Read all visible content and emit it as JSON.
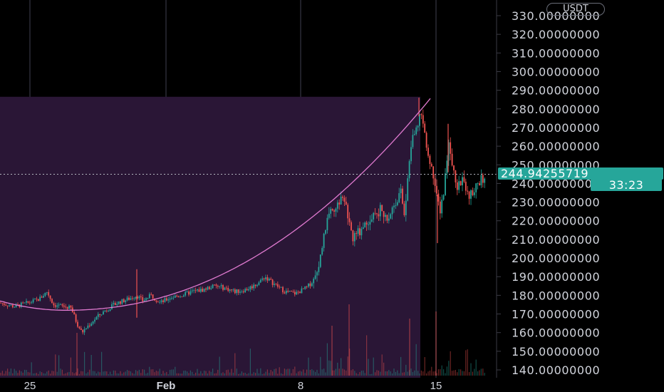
{
  "chart_data": {
    "type": "candlestick",
    "quote_currency": "USDT",
    "x_ticks": [
      "25",
      "Feb",
      "8",
      "15"
    ],
    "y_ticks": [
      "140.00000000",
      "150.00000000",
      "160.00000000",
      "170.00000000",
      "180.00000000",
      "190.00000000",
      "200.00000000",
      "210.00000000",
      "220.00000000",
      "230.00000000",
      "240.00000000",
      "250.00000000",
      "260.00000000",
      "270.00000000",
      "280.00000000",
      "290.00000000",
      "300.00000000",
      "310.00000000",
      "320.00000000",
      "330.00000000"
    ],
    "ylim": [
      137,
      333
    ],
    "last_price": "244.94255719",
    "countdown": "33:23",
    "colors": {
      "up": "#26a69a",
      "down": "#ef5350",
      "highlight_fill": "#2a1636",
      "curve": "#e07ad0",
      "grid": "#2b2b36",
      "label": "#d1d4dc"
    },
    "highlight_zone": {
      "top_price": 286.5,
      "bottom_price": 137
    },
    "price_path": [
      [
        0,
        176
      ],
      [
        20,
        174
      ],
      [
        40,
        176
      ],
      [
        55,
        178
      ],
      [
        66,
        182
      ],
      [
        75,
        175
      ],
      [
        90,
        174
      ],
      [
        100,
        173
      ],
      [
        108,
        165
      ],
      [
        115,
        160
      ],
      [
        122,
        163
      ],
      [
        135,
        168
      ],
      [
        148,
        172
      ],
      [
        165,
        176
      ],
      [
        180,
        178
      ],
      [
        192,
        180
      ],
      [
        200,
        177
      ],
      [
        212,
        180
      ],
      [
        225,
        176
      ],
      [
        240,
        179
      ],
      [
        255,
        180
      ],
      [
        270,
        182
      ],
      [
        285,
        183
      ],
      [
        300,
        185
      ],
      [
        315,
        184
      ],
      [
        330,
        182
      ],
      [
        345,
        183
      ],
      [
        360,
        186
      ],
      [
        372,
        190
      ],
      [
        385,
        186
      ],
      [
        400,
        182
      ],
      [
        415,
        181
      ],
      [
        430,
        184
      ],
      [
        445,
        190
      ],
      [
        455,
        215
      ],
      [
        462,
        222
      ],
      [
        470,
        228
      ],
      [
        478,
        232
      ],
      [
        487,
        226
      ],
      [
        495,
        210
      ],
      [
        505,
        215
      ],
      [
        515,
        220
      ],
      [
        525,
        224
      ],
      [
        535,
        226
      ],
      [
        545,
        222
      ],
      [
        555,
        230
      ],
      [
        562,
        236
      ],
      [
        568,
        224
      ],
      [
        574,
        250
      ],
      [
        578,
        262
      ],
      [
        584,
        272
      ],
      [
        590,
        276
      ],
      [
        596,
        268
      ],
      [
        603,
        250
      ],
      [
        608,
        246
      ],
      [
        613,
        232
      ],
      [
        618,
        226
      ],
      [
        624,
        240
      ],
      [
        630,
        262
      ],
      [
        636,
        248
      ],
      [
        642,
        238
      ],
      [
        650,
        244
      ],
      [
        657,
        232
      ],
      [
        663,
        236
      ],
      [
        670,
        238
      ],
      [
        676,
        242
      ],
      [
        680,
        245
      ]
    ],
    "spikes": [
      {
        "x": 192,
        "high": 194,
        "low": 168
      },
      {
        "x": 588,
        "high": 286,
        "low": 276
      },
      {
        "x": 614,
        "high": 234,
        "low": 208
      },
      {
        "x": 629,
        "high": 272,
        "low": 246
      }
    ],
    "volume_spikes": [
      {
        "x": 490,
        "h": 100
      },
      {
        "x": 575,
        "h": 80
      },
      {
        "x": 612,
        "h": 90
      },
      {
        "x": 466,
        "h": 70
      },
      {
        "x": 108,
        "h": 60
      }
    ]
  }
}
